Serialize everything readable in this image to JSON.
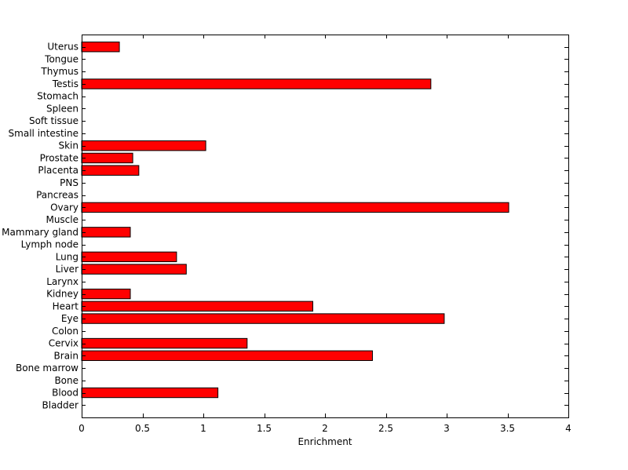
{
  "chart_data": {
    "type": "bar",
    "orientation": "horizontal",
    "title": "",
    "xlabel": "Enrichment",
    "ylabel": "",
    "xlim": [
      0,
      4
    ],
    "xticks": [
      0,
      0.5,
      1,
      1.5,
      2,
      2.5,
      3,
      3.5,
      4
    ],
    "xtick_labels": [
      "0",
      "0.5",
      "1",
      "1.5",
      "2",
      "2.5",
      "3",
      "3.5",
      "4"
    ],
    "grid": false,
    "legend": "none",
    "bar_color": "#ff0000",
    "bar_edge_color": "#000000",
    "categories": [
      "Bladder",
      "Blood",
      "Bone",
      "Bone marrow",
      "Brain",
      "Cervix",
      "Colon",
      "Eye",
      "Heart",
      "Kidney",
      "Larynx",
      "Liver",
      "Lung",
      "Lymph node",
      "Mammary gland",
      "Muscle",
      "Ovary",
      "Pancreas",
      "PNS",
      "Placenta",
      "Prostate",
      "Skin",
      "Small intestine",
      "Soft tissue",
      "Spleen",
      "Stomach",
      "Testis",
      "Thymus",
      "Tongue",
      "Uterus"
    ],
    "values": [
      0,
      1.12,
      0,
      0,
      2.39,
      1.36,
      0,
      2.98,
      1.9,
      0.4,
      0,
      0.86,
      0.78,
      0,
      0.4,
      0,
      3.51,
      0,
      0,
      0.47,
      0.42,
      1.02,
      0,
      0,
      0,
      0,
      2.87,
      0,
      0,
      0.31
    ]
  }
}
